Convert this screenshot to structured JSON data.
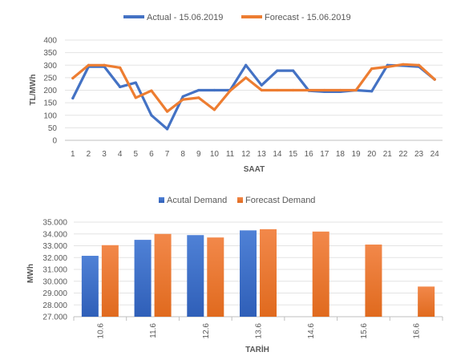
{
  "chart_data": [
    {
      "type": "line",
      "title": "",
      "xlabel": "SAAT",
      "ylabel": "TL/MWh",
      "ylim": [
        0,
        400
      ],
      "yticks": [
        "0",
        "50",
        "100",
        "150",
        "200",
        "250",
        "300",
        "350",
        "400"
      ],
      "categories": [
        "1",
        "2",
        "3",
        "4",
        "5",
        "6",
        "7",
        "8",
        "9",
        "10",
        "11",
        "12",
        "13",
        "14",
        "15",
        "16",
        "17",
        "18",
        "19",
        "20",
        "21",
        "22",
        "23",
        "24"
      ],
      "legend": "top",
      "grid": true,
      "series": [
        {
          "name": "Actual - 15.06.2019",
          "color": "#4472C4",
          "values": [
            168,
            294,
            294,
            213,
            230,
            100,
            45,
            175,
            200,
            200,
            200,
            300,
            220,
            278,
            278,
            198,
            194,
            194,
            200,
            196,
            300,
            298,
            294,
            243
          ]
        },
        {
          "name": "Forecast - 15.06.2019",
          "color": "#ED7D31",
          "values": [
            248,
            300,
            300,
            290,
            170,
            198,
            115,
            163,
            170,
            122,
            198,
            250,
            200,
            200,
            200,
            200,
            200,
            200,
            200,
            286,
            293,
            303,
            300,
            243
          ]
        }
      ]
    },
    {
      "type": "bar",
      "title": "",
      "xlabel": "TARİH",
      "ylabel": "MWh",
      "ylim": [
        27000,
        35000
      ],
      "yticks": [
        "27.000",
        "28.000",
        "29.000",
        "30.000",
        "31.000",
        "32.000",
        "33.000",
        "34.000",
        "35.000"
      ],
      "categories": [
        "10.6",
        "11.6",
        "12.6",
        "13.6",
        "14.6",
        "15.6",
        "16.6"
      ],
      "legend": "top",
      "grid": true,
      "series": [
        {
          "name": "Acutal Demand",
          "color": "#4472C4",
          "values": [
            32150,
            33500,
            33900,
            34300,
            null,
            null,
            null
          ]
        },
        {
          "name": "Forecast Demand",
          "color": "#ED7D31",
          "values": [
            33050,
            34000,
            33700,
            34400,
            34200,
            33100,
            29550
          ]
        }
      ]
    }
  ]
}
